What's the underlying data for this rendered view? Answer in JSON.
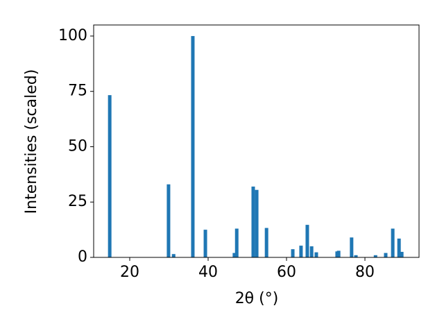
{
  "chart_data": {
    "type": "bar",
    "xlabel": "2θ (°)",
    "ylabel": "Intensities (scaled)",
    "x": [
      14.9,
      29.9,
      31.2,
      36.1,
      39.3,
      46.7,
      47.3,
      51.5,
      52.4,
      54.9,
      61.6,
      63.7,
      65.3,
      66.4,
      67.6,
      72.9,
      73.3,
      76.6,
      77.7,
      82.7,
      85.3,
      87.1,
      88.7,
      89.4
    ],
    "values": [
      73.3,
      33,
      1.5,
      100,
      12.5,
      2,
      13,
      32,
      30.5,
      13.3,
      3.7,
      5.3,
      14.7,
      5,
      2.3,
      2.7,
      3,
      9,
      1,
      1,
      2,
      13,
      8.5,
      2.5
    ],
    "color": "#1f77b4",
    "xlim": [
      10.8,
      93.8
    ],
    "xticks": [
      20,
      40,
      60,
      80
    ],
    "ylim": [
      0,
      105
    ],
    "yticks": [
      0,
      25,
      50,
      75,
      100
    ],
    "grid": false
  }
}
